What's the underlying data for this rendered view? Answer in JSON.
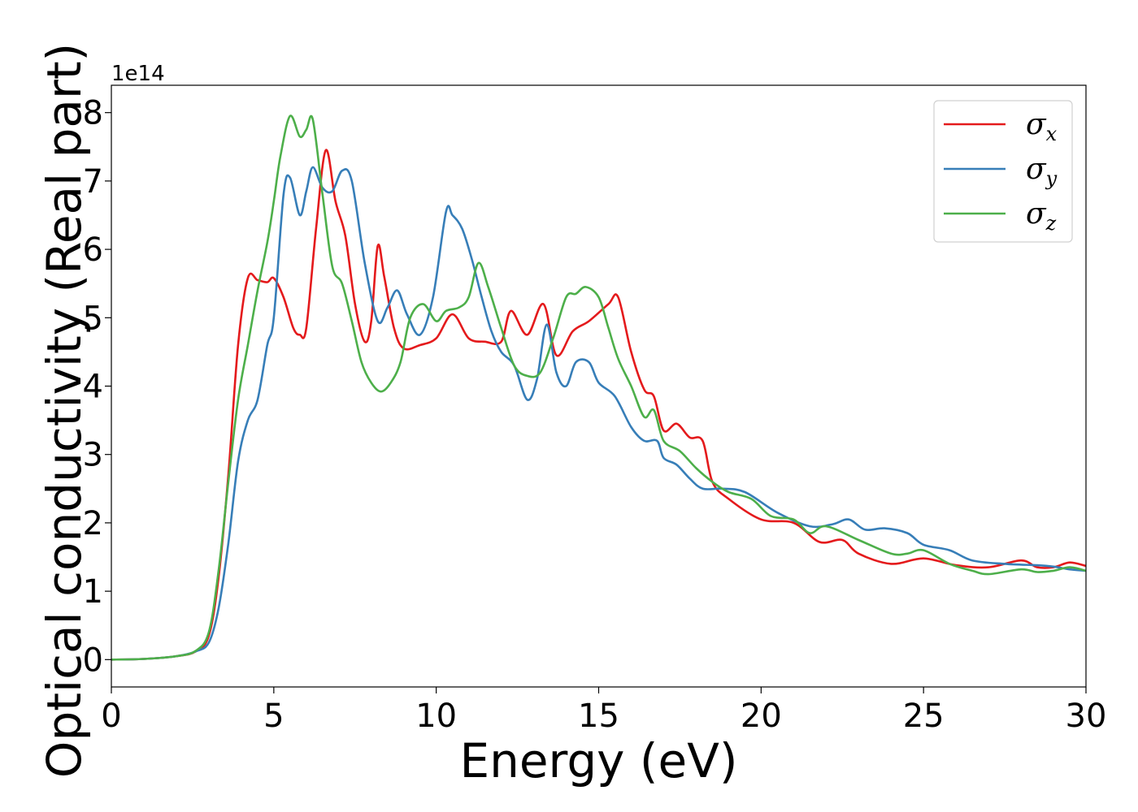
{
  "chart_data": {
    "type": "line",
    "title": "",
    "xlabel": "Energy (eV)",
    "ylabel": "Optical conductivity (Real part)",
    "y_offset_label": "1e14",
    "xlim": [
      0,
      30
    ],
    "ylim": [
      -0.4,
      8.4
    ],
    "xticks": [
      0,
      5,
      10,
      15,
      20,
      25,
      30
    ],
    "yticks": [
      0,
      1,
      2,
      3,
      4,
      5,
      6,
      7,
      8
    ],
    "grid": false,
    "legend_position": "top-right",
    "series": [
      {
        "name": "σx",
        "symbol": "σ",
        "subscript": "x",
        "color": "#e41a1c",
        "x": [
          0,
          1,
          2,
          2.6,
          3,
          3.3,
          3.6,
          3.9,
          4.2,
          4.5,
          4.8,
          5.0,
          5.3,
          5.6,
          5.8,
          6.0,
          6.3,
          6.6,
          6.9,
          7.2,
          7.5,
          7.8,
          8.0,
          8.2,
          8.4,
          8.7,
          9.0,
          9.5,
          10.0,
          10.5,
          11.0,
          11.5,
          12.0,
          12.3,
          12.8,
          13.3,
          13.7,
          14.2,
          14.7,
          15.3,
          15.6,
          16.0,
          16.4,
          16.7,
          17.0,
          17.4,
          17.8,
          18.2,
          18.5,
          19.0,
          20.0,
          21.0,
          21.8,
          22.5,
          23.0,
          24.0,
          25.0,
          26.0,
          27.0,
          28.0,
          28.5,
          29.0,
          29.5,
          30.0
        ],
        "y": [
          0,
          0.01,
          0.05,
          0.12,
          0.35,
          1.2,
          2.7,
          4.6,
          5.58,
          5.55,
          5.52,
          5.58,
          5.3,
          4.85,
          4.75,
          4.85,
          6.3,
          7.45,
          6.7,
          6.2,
          5.2,
          4.65,
          4.95,
          6.05,
          5.6,
          4.85,
          4.55,
          4.6,
          4.7,
          5.05,
          4.7,
          4.65,
          4.65,
          5.1,
          4.75,
          5.2,
          4.45,
          4.8,
          4.95,
          5.2,
          5.3,
          4.5,
          3.95,
          3.85,
          3.35,
          3.45,
          3.25,
          3.2,
          2.6,
          2.35,
          2.05,
          2.0,
          1.72,
          1.75,
          1.55,
          1.4,
          1.48,
          1.38,
          1.35,
          1.45,
          1.35,
          1.35,
          1.42,
          1.37
        ]
      },
      {
        "name": "σy",
        "symbol": "σ",
        "subscript": "y",
        "color": "#377eb8",
        "x": [
          0,
          1,
          2,
          2.6,
          3,
          3.3,
          3.6,
          3.9,
          4.2,
          4.5,
          4.8,
          5.0,
          5.3,
          5.5,
          5.8,
          6.0,
          6.2,
          6.5,
          6.8,
          7.1,
          7.4,
          7.8,
          8.2,
          8.5,
          8.8,
          9.1,
          9.5,
          9.9,
          10.3,
          10.5,
          10.8,
          11.1,
          11.4,
          11.7,
          12.0,
          12.4,
          12.8,
          13.1,
          13.4,
          13.7,
          14.0,
          14.3,
          14.7,
          15.0,
          15.5,
          16.0,
          16.4,
          16.8,
          17.0,
          17.4,
          17.8,
          18.2,
          18.8,
          19.5,
          20.5,
          21.5,
          22.2,
          22.7,
          23.2,
          23.8,
          24.5,
          25.0,
          25.8,
          26.5,
          27.5,
          28.5,
          29.0,
          29.5,
          30.0
        ],
        "y": [
          0,
          0.01,
          0.05,
          0.12,
          0.25,
          0.75,
          1.7,
          2.9,
          3.5,
          3.8,
          4.6,
          5.0,
          6.8,
          7.05,
          6.5,
          6.85,
          7.2,
          6.9,
          6.85,
          7.15,
          7.0,
          5.8,
          4.95,
          5.15,
          5.4,
          5.05,
          4.75,
          5.3,
          6.55,
          6.5,
          6.3,
          5.85,
          5.3,
          4.8,
          4.5,
          4.3,
          3.8,
          4.1,
          4.9,
          4.2,
          4.0,
          4.35,
          4.35,
          4.05,
          3.85,
          3.4,
          3.2,
          3.2,
          2.95,
          2.85,
          2.65,
          2.5,
          2.5,
          2.45,
          2.15,
          1.95,
          1.98,
          2.05,
          1.9,
          1.92,
          1.85,
          1.68,
          1.6,
          1.45,
          1.4,
          1.38,
          1.36,
          1.32,
          1.3
        ]
      },
      {
        "name": "σz",
        "symbol": "σ",
        "subscript": "z",
        "color": "#4daf4a",
        "x": [
          0,
          1,
          2,
          2.6,
          3,
          3.3,
          3.6,
          3.9,
          4.2,
          4.5,
          4.8,
          5.0,
          5.2,
          5.5,
          5.8,
          6.0,
          6.2,
          6.5,
          6.8,
          7.1,
          7.4,
          7.7,
          8.0,
          8.3,
          8.6,
          8.9,
          9.2,
          9.6,
          10.0,
          10.3,
          10.7,
          11.0,
          11.3,
          11.6,
          12.0,
          12.4,
          12.8,
          13.2,
          13.6,
          14.0,
          14.3,
          14.6,
          15.0,
          15.3,
          15.6,
          16.0,
          16.4,
          16.7,
          17.0,
          17.5,
          18.0,
          18.5,
          19.0,
          19.7,
          20.3,
          21.0,
          21.5,
          22.0,
          23.0,
          24.0,
          24.5,
          25.0,
          25.8,
          26.5,
          27.0,
          28.0,
          28.5,
          29.0,
          29.5,
          30.0
        ],
        "y": [
          0,
          0.01,
          0.05,
          0.13,
          0.4,
          1.3,
          2.6,
          3.8,
          4.6,
          5.4,
          6.1,
          6.7,
          7.35,
          7.95,
          7.65,
          7.75,
          7.9,
          6.8,
          5.75,
          5.5,
          4.95,
          4.35,
          4.05,
          3.92,
          4.05,
          4.35,
          5.0,
          5.2,
          4.95,
          5.1,
          5.15,
          5.3,
          5.8,
          5.45,
          4.85,
          4.3,
          4.15,
          4.2,
          4.7,
          5.3,
          5.35,
          5.45,
          5.3,
          4.85,
          4.4,
          4.0,
          3.55,
          3.65,
          3.2,
          3.05,
          2.8,
          2.6,
          2.45,
          2.35,
          2.1,
          2.05,
          1.85,
          1.95,
          1.75,
          1.55,
          1.55,
          1.6,
          1.4,
          1.3,
          1.25,
          1.32,
          1.28,
          1.3,
          1.35,
          1.3
        ]
      }
    ]
  }
}
